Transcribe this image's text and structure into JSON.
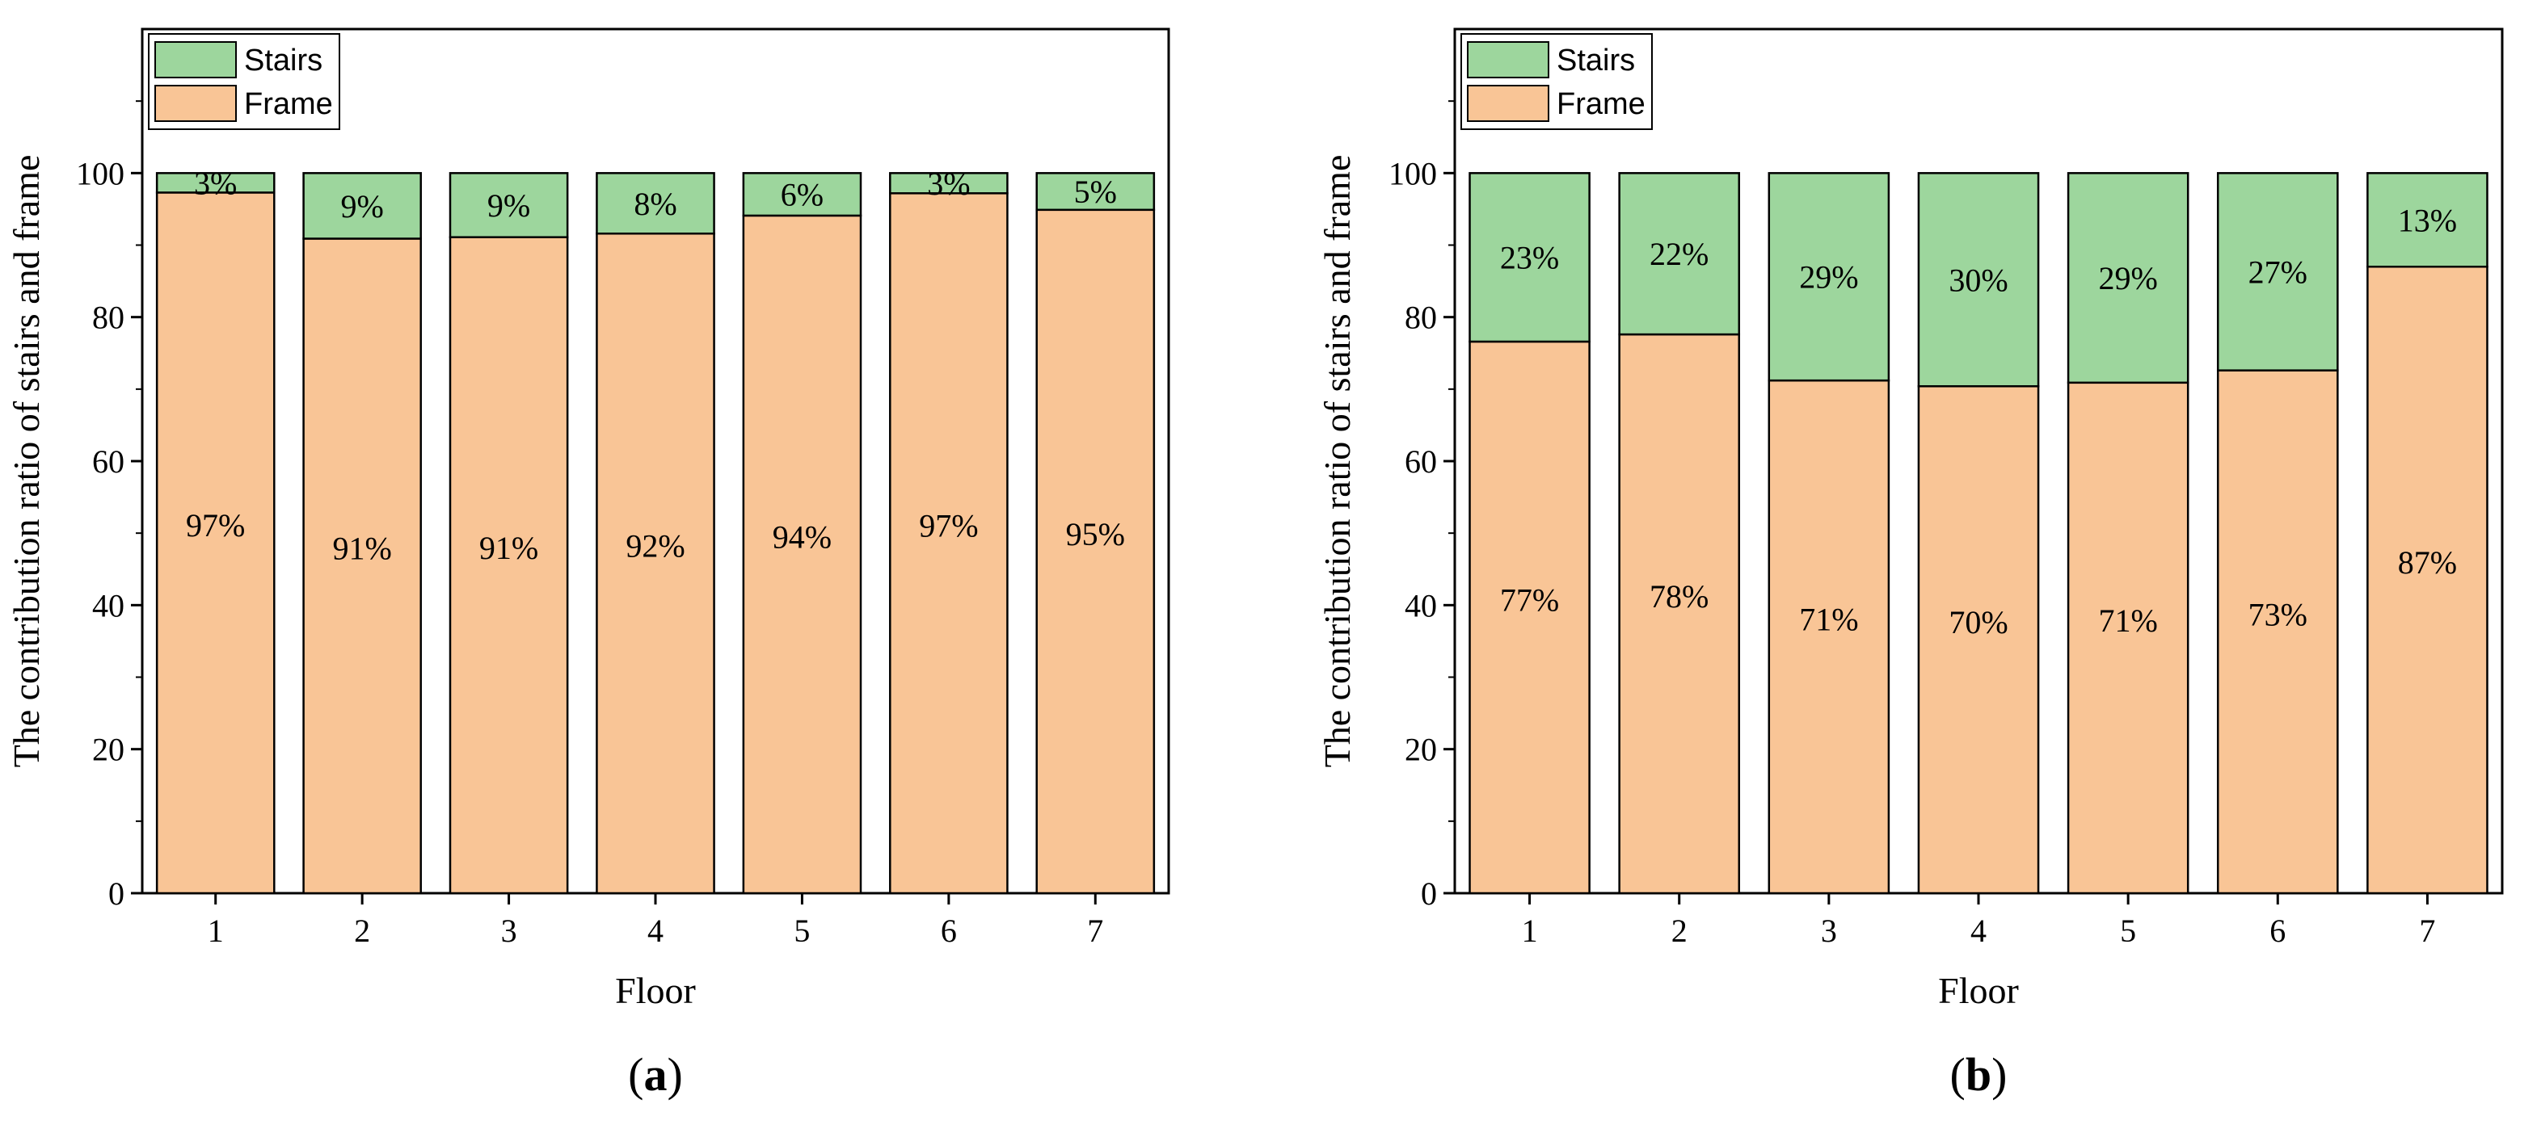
{
  "chart_data": [
    {
      "type": "bar",
      "stacked": true,
      "panel_label": {
        "open": "(",
        "letter": "a",
        "close": ")"
      },
      "xlabel": "Floor",
      "ylabel": "The contribution ratio of stairs and frame",
      "ylim": [
        0,
        120
      ],
      "yticks": [
        0,
        20,
        40,
        60,
        80,
        100
      ],
      "categories": [
        "1",
        "2",
        "3",
        "4",
        "5",
        "6",
        "7"
      ],
      "legend_position": "top-left",
      "series": [
        {
          "name": "Frame",
          "color": "#f9c596",
          "values": [
            97.3,
            90.9,
            91.1,
            91.6,
            94.1,
            97.2,
            94.9
          ],
          "labels": [
            "97%",
            "91%",
            "91%",
            "92%",
            "94%",
            "97%",
            "95%"
          ]
        },
        {
          "name": "Stairs",
          "color": "#9dd69d",
          "values": [
            2.7,
            9.1,
            8.9,
            8.4,
            5.9,
            2.8,
            5.1
          ],
          "labels": [
            "3%",
            "9%",
            "9%",
            "8%",
            "6%",
            "3%",
            "5%"
          ]
        }
      ]
    },
    {
      "type": "bar",
      "stacked": true,
      "panel_label": {
        "open": "(",
        "letter": "b",
        "close": ")"
      },
      "xlabel": "Floor",
      "ylabel": "The contribution ratio of stairs and frame",
      "ylim": [
        0,
        120
      ],
      "yticks": [
        0,
        20,
        40,
        60,
        80,
        100
      ],
      "categories": [
        "1",
        "2",
        "3",
        "4",
        "5",
        "6",
        "7"
      ],
      "legend_position": "top-left",
      "series": [
        {
          "name": "Frame",
          "color": "#f9c596",
          "values": [
            76.6,
            77.6,
            71.2,
            70.4,
            70.9,
            72.6,
            87.0
          ],
          "labels": [
            "77%",
            "78%",
            "71%",
            "70%",
            "71%",
            "73%",
            "87%"
          ]
        },
        {
          "name": "Stairs",
          "color": "#9dd69d",
          "values": [
            23.4,
            22.4,
            28.8,
            29.6,
            29.1,
            27.4,
            13.0
          ],
          "labels": [
            "23%",
            "22%",
            "29%",
            "30%",
            "29%",
            "27%",
            "13%"
          ]
        }
      ]
    }
  ]
}
